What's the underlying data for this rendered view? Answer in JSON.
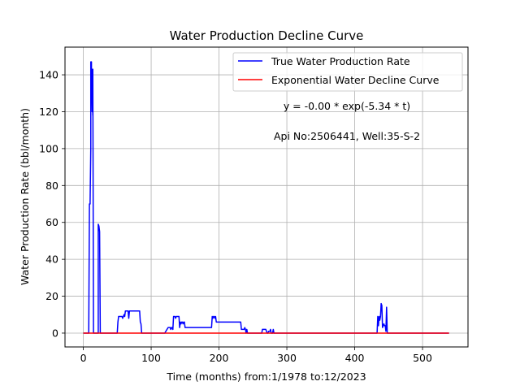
{
  "chart_data": {
    "type": "line",
    "title": "Water Production Decline Curve",
    "xlabel": "Time (months) from:1/1978 to:12/2023",
    "ylabel": "Water Production Rate (bbl/month)",
    "xlim": [
      -27,
      567
    ],
    "ylim": [
      -7.5,
      155
    ],
    "xticks": [
      0,
      100,
      200,
      300,
      400,
      500
    ],
    "yticks": [
      0,
      20,
      40,
      60,
      80,
      100,
      120,
      140
    ],
    "grid": true,
    "legend_position": "top-right",
    "annotations": [
      "y = -0.00 * exp(-5.34 * t)",
      "Api No:2506441, Well:35-S-2"
    ],
    "series": [
      {
        "name": "True Water Production Rate",
        "color": "#0000ff",
        "x": [
          0,
          8,
          9,
          9,
          10,
          10,
          11,
          11,
          12,
          12,
          13,
          13,
          14,
          14,
          15,
          15,
          16,
          17,
          18,
          19,
          20,
          21,
          22,
          22,
          23,
          24,
          25,
          25,
          26,
          50,
          51,
          52,
          53,
          54,
          55,
          56,
          57,
          58,
          59,
          60,
          61,
          62,
          63,
          64,
          65,
          66,
          67,
          68,
          69,
          70,
          71,
          72,
          73,
          74,
          75,
          76,
          77,
          78,
          79,
          80,
          81,
          82,
          83,
          84,
          85,
          86,
          87,
          88,
          89,
          90,
          91,
          92,
          93,
          94,
          95,
          96,
          97,
          98,
          99,
          100,
          110,
          120,
          125,
          126,
          127,
          128,
          129,
          130,
          131,
          132,
          133,
          134,
          135,
          136,
          137,
          138,
          139,
          140,
          141,
          142,
          143,
          144,
          145,
          146,
          147,
          148,
          149,
          150,
          151,
          152,
          153,
          154,
          155,
          156,
          160,
          170,
          180,
          189,
          190,
          191,
          192,
          193,
          194,
          195,
          196,
          197,
          198,
          230,
          231,
          232,
          233,
          234,
          235,
          236,
          237,
          238,
          239,
          240,
          241,
          242,
          243,
          244,
          245,
          246,
          250,
          260,
          262,
          263,
          264,
          265,
          266,
          267,
          268,
          269,
          270,
          271,
          272,
          273,
          274,
          275,
          276,
          277,
          278,
          279,
          280,
          281,
          282,
          283,
          290,
          300,
          350,
          400,
          430,
          432,
          433,
          434,
          435,
          436,
          437,
          438,
          439,
          440,
          441,
          442,
          443,
          444,
          445,
          446,
          447,
          448,
          449,
          450,
          451,
          452,
          460,
          500,
          539
        ],
        "y": [
          0,
          0,
          69,
          70,
          70,
          71,
          100,
          147,
          147,
          144,
          120,
          143,
          118,
          143,
          0,
          0,
          0,
          0,
          0,
          0,
          0,
          0,
          0,
          59,
          58,
          55,
          0,
          0,
          0,
          0,
          6,
          9,
          9,
          9,
          9,
          9,
          9,
          8,
          9,
          10,
          9,
          12,
          12,
          12,
          12,
          12,
          8,
          12,
          12,
          12,
          12,
          12,
          12,
          12,
          12,
          12,
          12,
          12,
          12,
          12,
          12,
          12,
          12,
          6,
          5,
          0,
          0,
          0,
          0,
          0,
          0,
          0,
          0,
          0,
          0,
          0,
          0,
          0,
          0,
          0,
          0,
          0,
          3,
          3,
          3,
          3,
          2,
          3,
          3,
          2,
          9,
          9,
          9,
          8,
          9,
          9,
          9,
          9,
          9,
          3,
          6,
          5,
          6,
          6,
          5,
          6,
          6,
          3,
          3,
          3,
          3,
          3,
          3,
          3,
          3,
          3,
          3,
          3,
          9,
          8,
          9,
          9,
          8,
          9,
          6,
          6,
          6,
          6,
          6,
          6,
          2,
          2,
          2,
          2,
          2,
          3,
          2,
          0,
          2,
          0,
          0,
          0,
          0,
          0,
          0,
          0,
          0,
          0,
          2,
          2,
          2,
          2,
          2,
          2,
          1,
          0,
          0,
          1,
          1,
          1,
          2,
          0,
          0,
          0,
          2,
          0,
          0,
          0,
          0,
          0,
          0,
          0,
          0,
          0,
          0,
          9,
          4,
          9,
          7,
          9,
          16,
          15,
          3,
          4,
          5,
          4,
          4,
          1,
          14,
          0,
          0,
          0,
          0,
          0,
          0,
          0,
          0
        ]
      },
      {
        "name": "Exponential Water Decline Curve",
        "color": "#ff0000",
        "x": [
          0,
          100,
          200,
          300,
          400,
          500,
          539
        ],
        "y": [
          0,
          0,
          0,
          0,
          0,
          0,
          0
        ]
      }
    ]
  }
}
